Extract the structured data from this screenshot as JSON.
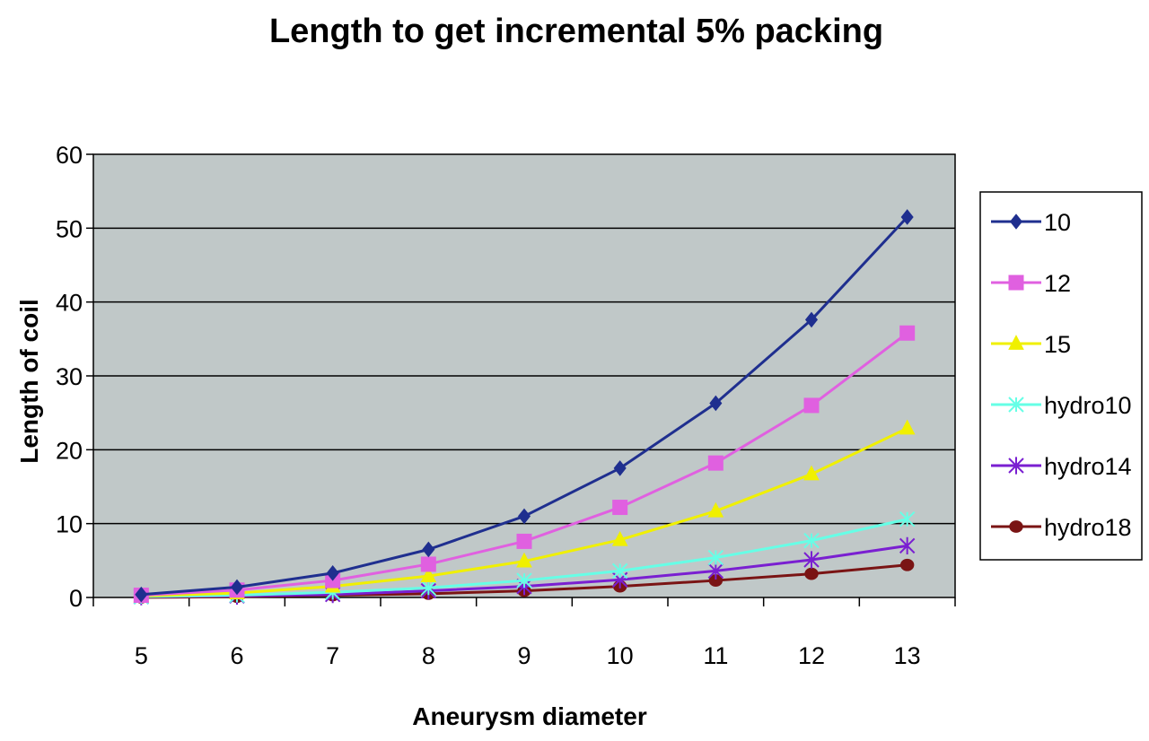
{
  "chart_data": {
    "type": "line",
    "title": "Length to get incremental 5%  packing",
    "xlabel": "Aneurysm diameter",
    "ylabel": "Length of coil",
    "categories": [
      "5",
      "6",
      "7",
      "8",
      "9",
      "10",
      "11",
      "12",
      "13"
    ],
    "ylim": [
      0,
      60
    ],
    "yticks": [
      "0",
      "10",
      "20",
      "30",
      "40",
      "50",
      "60"
    ],
    "grid": true,
    "legend_position": "right",
    "plot_background": "#c0c8c8",
    "series": [
      {
        "name": "10",
        "color": "#1f2f8f",
        "marker": "diamond",
        "values": [
          0.4,
          1.4,
          3.3,
          6.5,
          11.0,
          17.5,
          26.3,
          37.6,
          51.5
        ]
      },
      {
        "name": "12",
        "color": "#e060e0",
        "marker": "square",
        "values": [
          0.3,
          1.0,
          2.3,
          4.5,
          7.6,
          12.2,
          18.2,
          26.0,
          35.8
        ]
      },
      {
        "name": "15",
        "color": "#f0f000",
        "marker": "triangle",
        "values": [
          0.2,
          0.6,
          1.5,
          2.9,
          4.9,
          7.8,
          11.7,
          16.7,
          22.9
        ]
      },
      {
        "name": "hydro10",
        "color": "#66ffe6",
        "marker": "x-star",
        "values": [
          0.1,
          0.3,
          0.7,
          1.3,
          2.3,
          3.6,
          5.4,
          7.7,
          10.6
        ]
      },
      {
        "name": "hydro14",
        "color": "#7a1fd1",
        "marker": "asterisk",
        "values": [
          0.1,
          0.2,
          0.4,
          0.9,
          1.5,
          2.4,
          3.6,
          5.1,
          7.0
        ]
      },
      {
        "name": "hydro18",
        "color": "#7a1414",
        "marker": "circle",
        "values": [
          0.0,
          0.1,
          0.3,
          0.5,
          0.9,
          1.5,
          2.3,
          3.2,
          4.4
        ]
      }
    ]
  }
}
